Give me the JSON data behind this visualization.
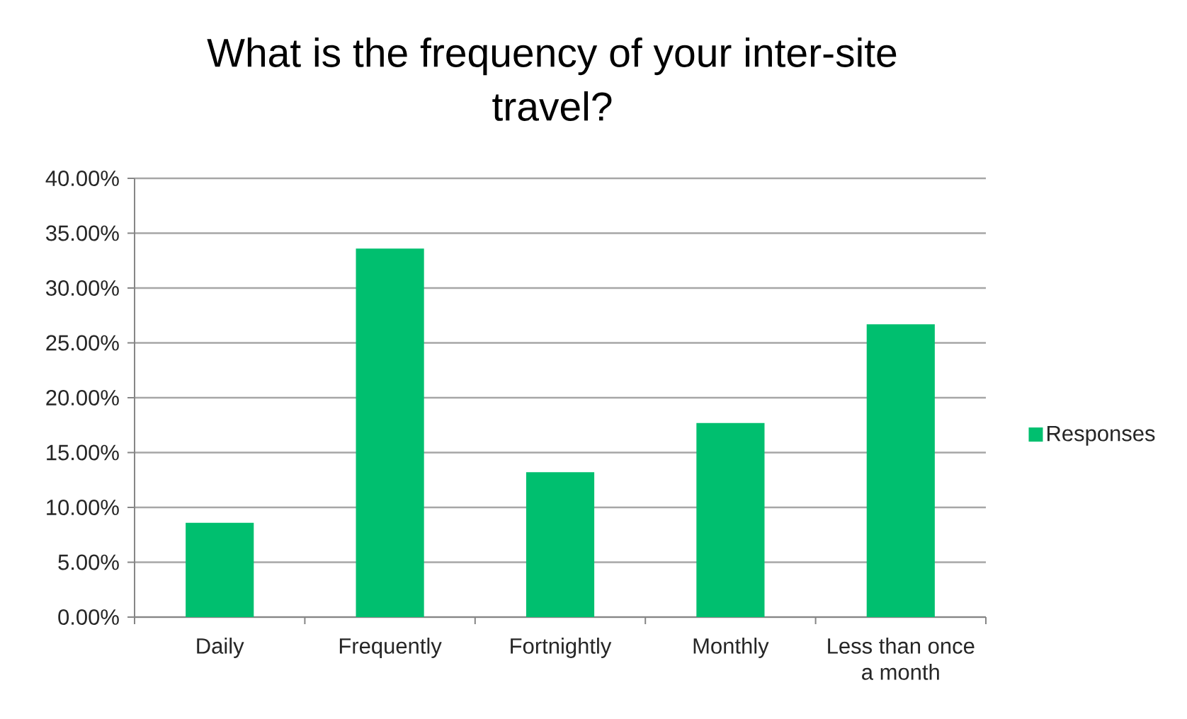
{
  "chart_data": {
    "type": "bar",
    "title": "What is the frequency of your inter-site travel?",
    "categories": [
      "Daily",
      "Frequently",
      "Fortnightly",
      "Monthly",
      "Less than once a month"
    ],
    "series": [
      {
        "name": "Responses",
        "color": "#00bf6f",
        "values": [
          8.6,
          33.6,
          13.2,
          17.7,
          26.7
        ]
      }
    ],
    "ylim": [
      0,
      40
    ],
    "yticks": [
      {
        "value": 0,
        "label": "0.00%"
      },
      {
        "value": 5,
        "label": "5.00%"
      },
      {
        "value": 10,
        "label": "10.00%"
      },
      {
        "value": 15,
        "label": "15.00%"
      },
      {
        "value": 20,
        "label": "20.00%"
      },
      {
        "value": 25,
        "label": "25.00%"
      },
      {
        "value": 30,
        "label": "30.00%"
      },
      {
        "value": 35,
        "label": "35.00%"
      },
      {
        "value": 40,
        "label": "40.00%"
      }
    ],
    "grid": "y",
    "legend": "right"
  }
}
